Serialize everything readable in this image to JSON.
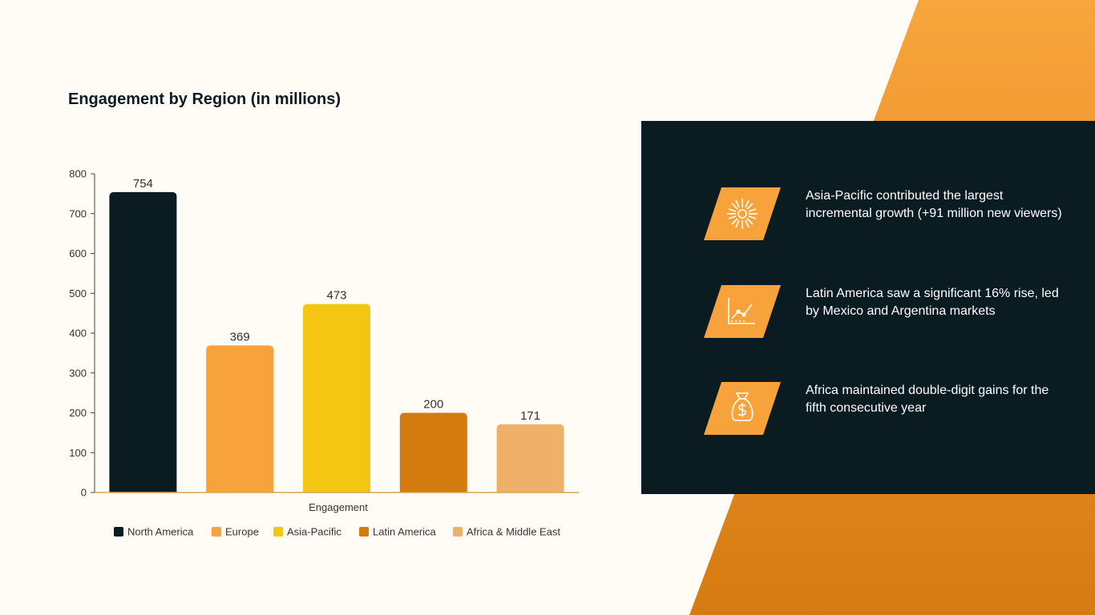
{
  "chart_data": {
    "type": "bar",
    "title": "Engagement by Region (in millions)",
    "xlabel": "Engagement",
    "ylabel": "",
    "ylim": [
      0,
      800
    ],
    "yticks": [
      0,
      100,
      200,
      300,
      400,
      500,
      600,
      700,
      800
    ],
    "categories": [
      "North America",
      "Europe",
      "Asia-Pacific",
      "Latin America",
      "Africa & Middle East"
    ],
    "values": [
      754,
      369,
      473,
      200,
      171
    ],
    "colors": [
      "#0b1b22",
      "#f7a23b",
      "#f3c614",
      "#d47b10",
      "#efb06a"
    ],
    "legend_position": "bottom",
    "grid": false
  },
  "insights": [
    {
      "icon": "sunburst-icon",
      "text": "Asia-Pacific contributed the largest incremental growth (+91 million new viewers)"
    },
    {
      "icon": "line-chart-icon",
      "text": "Latin America saw a significant 16% rise, led by Mexico and Argentina markets"
    },
    {
      "icon": "money-bag-icon",
      "text": "Africa maintained double-digit gains for the fifth consecutive year"
    }
  ],
  "colors": {
    "accent": "#f7a23b",
    "accent_dark": "#d47b10",
    "panel": "#0b1b22",
    "background": "#fffcf6"
  }
}
